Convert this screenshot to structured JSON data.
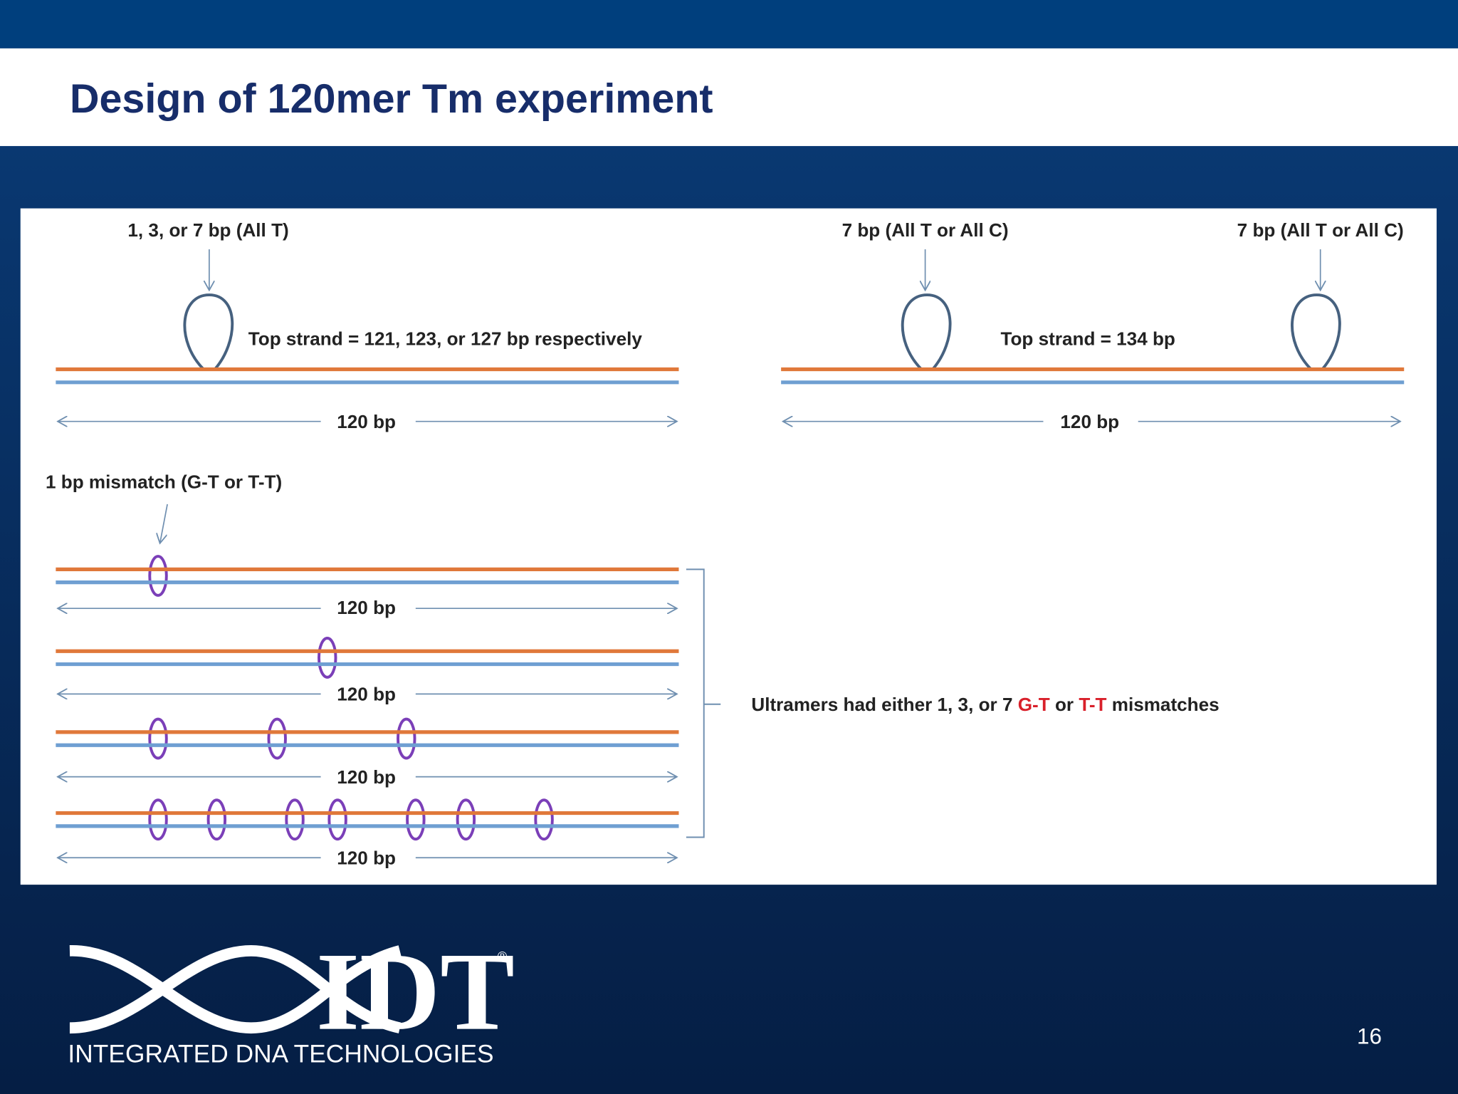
{
  "header": {
    "title": "Design of 120mer Tm experiment"
  },
  "diagram": {
    "single_loop": {
      "label": "1, 3, or 7 bp (All T)",
      "strand": "Top strand = 121, 123, or 127 bp respectively",
      "length": "120 bp"
    },
    "double_loop": {
      "labels": [
        "7 bp (All T or All C)",
        "7 bp (All T or All C)"
      ],
      "strand": "Top strand = 134 bp",
      "length": "120 bp"
    },
    "mismatch": {
      "label": "1 bp mismatch (G-T or T-T)",
      "lengths": [
        "120 bp",
        "120 bp",
        "120 bp",
        "120 bp"
      ],
      "note": [
        "Ultramers had either 1, 3, or 7 ",
        "G-T",
        " or ",
        "T-T",
        " mismatches"
      ]
    }
  },
  "footer": {
    "logo": "IDT",
    "registered": "®",
    "company": "INTEGRATED DNA TECHNOLOGIES",
    "page_number": "16"
  }
}
